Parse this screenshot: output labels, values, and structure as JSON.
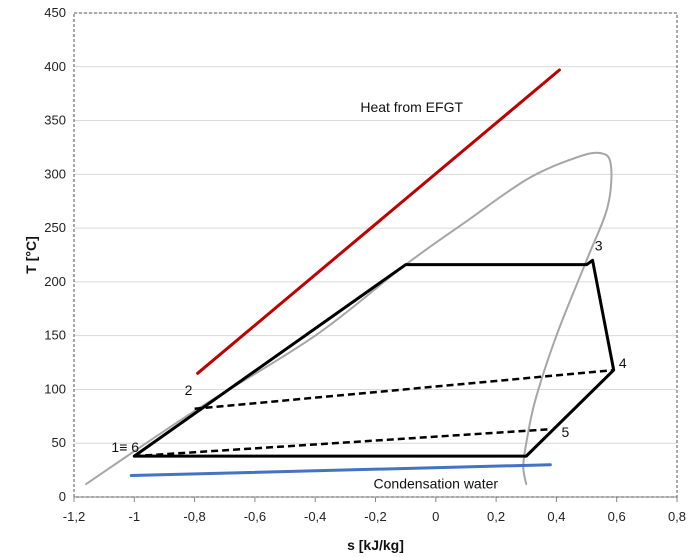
{
  "chart_data": {
    "type": "line",
    "xlabel": "s [kJ/kg]",
    "ylabel": "T [°C]",
    "xlim": [
      -1.2,
      0.8
    ],
    "ylim": [
      0,
      450
    ],
    "x_ticks": [
      "-1,2",
      "-1",
      "-0,8",
      "-0,6",
      "-0,4",
      "-0,2",
      "0",
      "0,2",
      "0,4",
      "0,6",
      "0,8"
    ],
    "x_tick_values": [
      -1.2,
      -1.0,
      -0.8,
      -0.6,
      -0.4,
      -0.2,
      0.0,
      0.2,
      0.4,
      0.6,
      0.8
    ],
    "y_ticks": [
      "0",
      "50",
      "100",
      "150",
      "200",
      "250",
      "300",
      "350",
      "400",
      "450"
    ],
    "y_tick_values": [
      0,
      50,
      100,
      150,
      200,
      250,
      300,
      350,
      400,
      450
    ],
    "grid": "horizontal",
    "colors": {
      "heat": "#c00000",
      "condensation": "#4472c4",
      "saturation": "#a6a6a6",
      "cycle": "#000000"
    },
    "series": [
      {
        "name": "Heat from EFGT",
        "style": "solid",
        "color": "#c00000",
        "points": [
          [
            -0.79,
            115
          ],
          [
            0.41,
            397
          ]
        ]
      },
      {
        "name": "Condensation water",
        "style": "solid",
        "color": "#4472c4",
        "points": [
          [
            -1.01,
            20
          ],
          [
            0.38,
            30
          ]
        ]
      },
      {
        "style": "saturation-curve",
        "color": "#a6a6a6",
        "points": [
          [
            -1.16,
            12
          ],
          [
            -0.8,
            80
          ],
          [
            -0.4,
            150
          ],
          [
            -0.1,
            216
          ],
          [
            0.1,
            256
          ],
          [
            0.3,
            295
          ],
          [
            0.45,
            314
          ],
          [
            0.54,
            320
          ],
          [
            0.58,
            310
          ],
          [
            0.57,
            270
          ],
          [
            0.5,
            220
          ],
          [
            0.4,
            150
          ],
          [
            0.33,
            90
          ],
          [
            0.3,
            50
          ],
          [
            0.29,
            28
          ],
          [
            0.3,
            12
          ]
        ]
      },
      {
        "style": "cycle-solid",
        "color": "#000000",
        "points": [
          [
            -1.0,
            38
          ],
          [
            -0.1,
            216
          ],
          [
            0.5,
            216
          ],
          [
            0.52,
            220
          ],
          [
            0.59,
            118
          ],
          [
            0.3,
            38
          ],
          [
            -1.0,
            38
          ]
        ]
      },
      {
        "style": "dashed",
        "color": "#000000",
        "points": [
          [
            -0.8,
            82
          ],
          [
            0.59,
            118
          ]
        ]
      },
      {
        "style": "dashed",
        "color": "#000000",
        "points": [
          [
            -1.0,
            38
          ],
          [
            0.38,
            63
          ]
        ]
      }
    ],
    "point_labels": [
      {
        "text": "1≡ 6",
        "x": -1.03,
        "y": 42
      },
      {
        "text": "2",
        "x": -0.82,
        "y": 95
      },
      {
        "text": "3",
        "x": 0.54,
        "y": 229
      },
      {
        "text": "4",
        "x": 0.62,
        "y": 120
      },
      {
        "text": "5",
        "x": 0.43,
        "y": 56
      }
    ],
    "annotations": [
      {
        "text": "Heat from EFGT",
        "x": -0.08,
        "y": 358
      },
      {
        "text": "Condensation water",
        "x": 0.0,
        "y": 8
      }
    ]
  }
}
